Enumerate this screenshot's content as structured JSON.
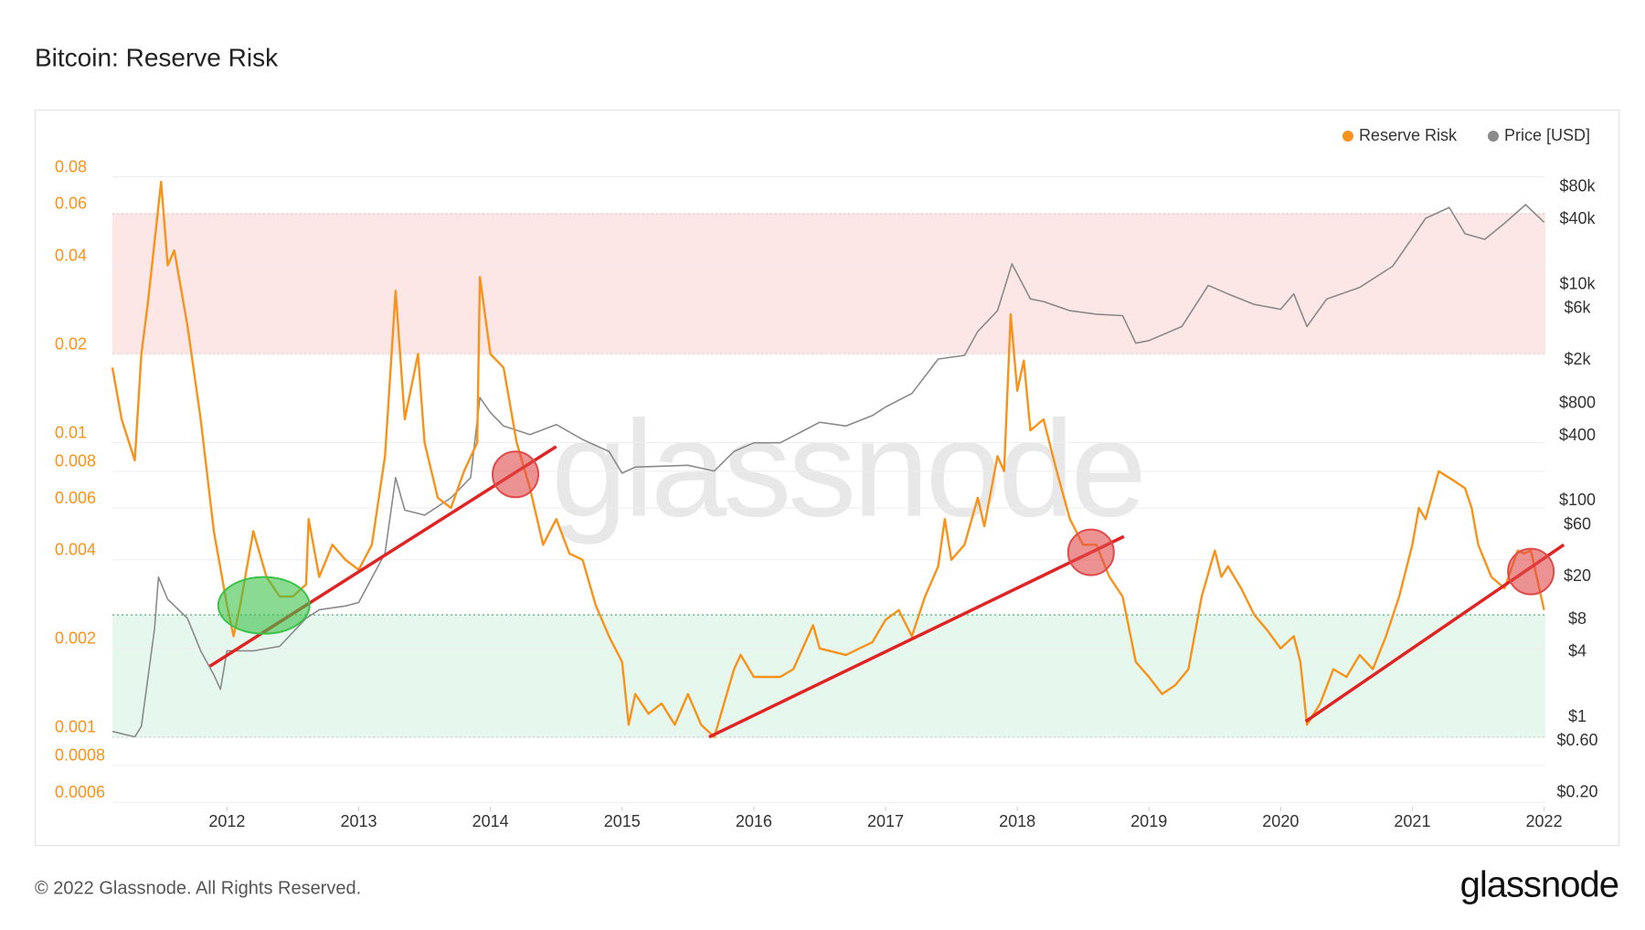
{
  "chart_data": {
    "type": "line",
    "title": "Bitcoin: Reserve Risk",
    "footer": "© 2022 Glassnode. All Rights Reserved.",
    "brand": "glassnode",
    "watermark": "glassnode",
    "log_scale": true,
    "grid": true,
    "legend": "top-right",
    "xlim": [
      2011.13,
      2022.01
    ],
    "xticks": [
      2012,
      2013,
      2014,
      2015,
      2016,
      2017,
      2018,
      2019,
      2020,
      2021,
      2022
    ],
    "ylim": [
      0.00058,
      0.0967
    ],
    "yticks": [
      0.0006,
      0.0008,
      0.001,
      0.002,
      0.004,
      0.006,
      0.008,
      0.01,
      0.02,
      0.04,
      0.06,
      0.08
    ],
    "y2lim": [
      0.181,
      203000
    ],
    "y2ticks": [
      {
        "value": 0.2,
        "label": "$0.20"
      },
      {
        "value": 0.6,
        "label": "$0.60"
      },
      {
        "value": 1,
        "label": "$1"
      },
      {
        "value": 4,
        "label": "$4"
      },
      {
        "value": 8,
        "label": "$8"
      },
      {
        "value": 20,
        "label": "$20"
      },
      {
        "value": 60,
        "label": "$60"
      },
      {
        "value": 100,
        "label": "$100"
      },
      {
        "value": 400,
        "label": "$400"
      },
      {
        "value": 800,
        "label": "$800"
      },
      {
        "value": 2000,
        "label": "$2k"
      },
      {
        "value": 6000,
        "label": "$6k"
      },
      {
        "value": 10000,
        "label": "$10k"
      },
      {
        "value": 40000,
        "label": "$40k"
      },
      {
        "value": 80000,
        "label": "$80k"
      }
    ],
    "bands": [
      {
        "from": 0.02,
        "to": 0.06,
        "color": "#fde6e6",
        "edge": "#e05a5a"
      },
      {
        "from": 0.001,
        "to": 0.0026,
        "color": "#e6f7ee",
        "edge": "#3aa86a"
      }
    ],
    "series": [
      {
        "name": "Reserve Risk",
        "color": "#f7931a",
        "axis": "y",
        "x": [
          2011.13,
          2011.2,
          2011.3,
          2011.35,
          2011.4,
          2011.5,
          2011.55,
          2011.6,
          2011.7,
          2011.8,
          2011.9,
          2012.0,
          2012.05,
          2012.1,
          2012.2,
          2012.3,
          2012.4,
          2012.5,
          2012.6,
          2012.62,
          2012.7,
          2012.8,
          2012.9,
          2013.0,
          2013.1,
          2013.2,
          2013.28,
          2013.35,
          2013.45,
          2013.5,
          2013.6,
          2013.7,
          2013.8,
          2013.9,
          2013.92,
          2014.0,
          2014.1,
          2014.2,
          2014.3,
          2014.4,
          2014.5,
          2014.6,
          2014.7,
          2014.8,
          2014.9,
          2015.0,
          2015.05,
          2015.1,
          2015.2,
          2015.3,
          2015.4,
          2015.5,
          2015.6,
          2015.7,
          2015.85,
          2015.9,
          2016.0,
          2016.2,
          2016.3,
          2016.45,
          2016.5,
          2016.7,
          2016.9,
          2017.0,
          2017.1,
          2017.2,
          2017.3,
          2017.4,
          2017.45,
          2017.5,
          2017.6,
          2017.7,
          2017.75,
          2017.85,
          2017.9,
          2017.95,
          2018.0,
          2018.05,
          2018.1,
          2018.2,
          2018.3,
          2018.4,
          2018.5,
          2018.6,
          2018.7,
          2018.8,
          2018.9,
          2019.0,
          2019.1,
          2019.2,
          2019.3,
          2019.4,
          2019.5,
          2019.55,
          2019.6,
          2019.7,
          2019.8,
          2019.9,
          2020.0,
          2020.1,
          2020.15,
          2020.2,
          2020.3,
          2020.4,
          2020.5,
          2020.6,
          2020.7,
          2020.8,
          2020.9,
          2021.0,
          2021.05,
          2021.1,
          2021.2,
          2021.3,
          2021.4,
          2021.45,
          2021.5,
          2021.6,
          2021.7,
          2021.8,
          2021.85,
          2021.9,
          2022.0
        ],
        "values": [
          0.018,
          0.012,
          0.0087,
          0.02,
          0.03,
          0.077,
          0.04,
          0.045,
          0.025,
          0.012,
          0.005,
          0.0028,
          0.0022,
          0.0028,
          0.005,
          0.0035,
          0.003,
          0.003,
          0.0033,
          0.0055,
          0.0035,
          0.0045,
          0.004,
          0.0037,
          0.0045,
          0.009,
          0.0328,
          0.012,
          0.02,
          0.01,
          0.0065,
          0.006,
          0.008,
          0.01,
          0.0365,
          0.02,
          0.018,
          0.01,
          0.007,
          0.0045,
          0.0055,
          0.0042,
          0.004,
          0.0028,
          0.0022,
          0.0018,
          0.0011,
          0.0014,
          0.0012,
          0.0013,
          0.0011,
          0.0014,
          0.0011,
          0.001,
          0.0017,
          0.0019,
          0.0016,
          0.0016,
          0.0017,
          0.0024,
          0.002,
          0.0019,
          0.0021,
          0.0025,
          0.0027,
          0.0022,
          0.003,
          0.0038,
          0.0055,
          0.004,
          0.0045,
          0.0065,
          0.0052,
          0.009,
          0.008,
          0.0273,
          0.015,
          0.019,
          0.011,
          0.012,
          0.008,
          0.0055,
          0.0045,
          0.0045,
          0.0035,
          0.003,
          0.0018,
          0.0016,
          0.0014,
          0.0015,
          0.0017,
          0.003,
          0.0043,
          0.0035,
          0.0038,
          0.0032,
          0.0026,
          0.0023,
          0.002,
          0.0022,
          0.0018,
          0.0011,
          0.0013,
          0.0017,
          0.0016,
          0.0019,
          0.0017,
          0.0022,
          0.003,
          0.0045,
          0.006,
          0.0055,
          0.008,
          0.0075,
          0.007,
          0.006,
          0.0045,
          0.0035,
          0.0032,
          0.0043,
          0.0042,
          0.0043,
          0.0027
        ]
      },
      {
        "name": "Price [USD]",
        "color": "#8a8a8a",
        "axis": "y2",
        "x": [
          2011.13,
          2011.3,
          2011.35,
          2011.45,
          2011.48,
          2011.55,
          2011.7,
          2011.8,
          2011.9,
          2011.95,
          2012.0,
          2012.2,
          2012.4,
          2012.6,
          2012.7,
          2012.9,
          2013.0,
          2013.2,
          2013.28,
          2013.35,
          2013.5,
          2013.7,
          2013.85,
          2013.92,
          2014.0,
          2014.1,
          2014.3,
          2014.5,
          2014.7,
          2014.9,
          2015.0,
          2015.1,
          2015.5,
          2015.7,
          2015.85,
          2016.0,
          2016.2,
          2016.5,
          2016.7,
          2016.9,
          2017.0,
          2017.2,
          2017.4,
          2017.6,
          2017.7,
          2017.85,
          2017.96,
          2018.1,
          2018.2,
          2018.4,
          2018.6,
          2018.8,
          2018.9,
          2019.0,
          2019.25,
          2019.45,
          2019.6,
          2019.8,
          2020.0,
          2020.1,
          2020.2,
          2020.35,
          2020.6,
          2020.85,
          2021.0,
          2021.1,
          2021.28,
          2021.4,
          2021.55,
          2021.7,
          2021.86,
          2022.0
        ],
        "values": [
          0.9,
          0.8,
          1.0,
          8,
          24,
          15,
          10,
          5,
          3,
          2.2,
          5,
          5,
          5.5,
          10,
          12,
          13,
          14,
          40,
          200,
          100,
          90,
          130,
          200,
          1100,
          800,
          600,
          500,
          620,
          450,
          350,
          220,
          250,
          260,
          230,
          350,
          420,
          420,
          650,
          600,
          750,
          900,
          1200,
          2500,
          2700,
          4500,
          7000,
          19000,
          9000,
          8500,
          7000,
          6500,
          6300,
          3500,
          3700,
          5000,
          12000,
          10000,
          8000,
          7200,
          10000,
          5000,
          9000,
          11500,
          18000,
          33000,
          50000,
          63000,
          36000,
          32000,
          45000,
          67000,
          46000
        ]
      }
    ],
    "trendlines": [
      {
        "x": [
          2011.87,
          2014.5
        ],
        "y": [
          0.00174,
          0.0097
        ],
        "color": "#e02424"
      },
      {
        "x": [
          2015.66,
          2018.81
        ],
        "y": [
          0.001,
          0.0048
        ],
        "color": "#e02424"
      },
      {
        "x": [
          2020.19,
          2022.15
        ],
        "y": [
          0.00113,
          0.0045
        ],
        "color": "#e02424"
      }
    ],
    "markers": [
      {
        "x": 2012.28,
        "y": 0.0028,
        "color": "#3cc24a"
      },
      {
        "x": 2014.19,
        "y": 0.0078,
        "color": "#e04a4a"
      },
      {
        "x": 2018.56,
        "y": 0.00424,
        "color": "#e04a4a"
      },
      {
        "x": 2021.9,
        "y": 0.00365,
        "color": "#e04a4a"
      }
    ]
  }
}
